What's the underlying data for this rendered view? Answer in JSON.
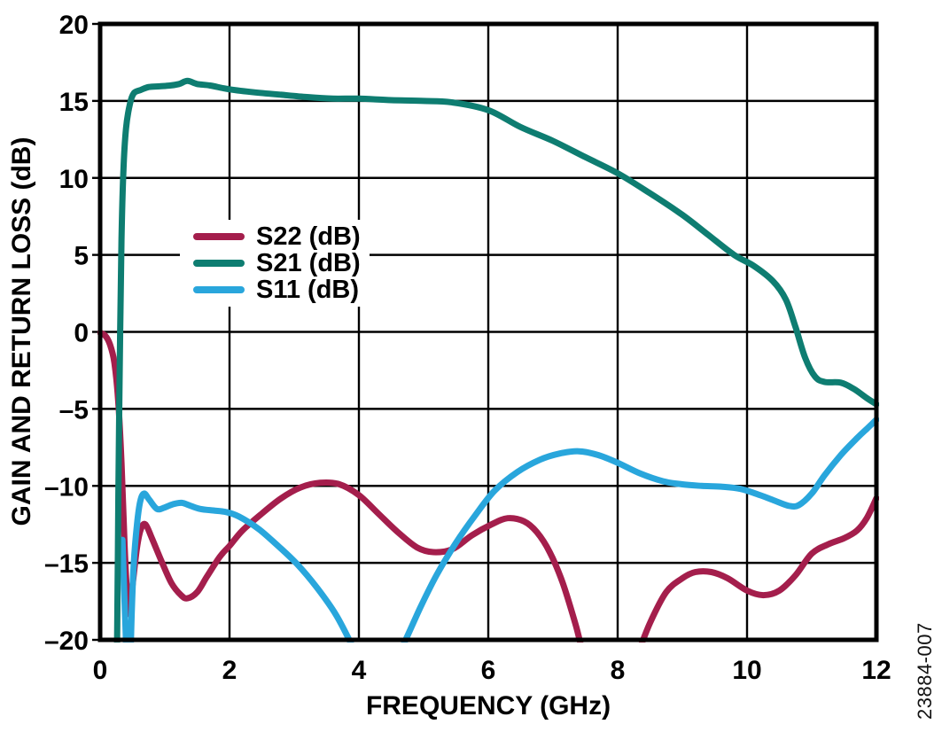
{
  "figure": {
    "watermark": "23884-007",
    "background_color": "#ffffff",
    "grid_color": "#000000",
    "text_color": "#000000"
  },
  "chart_data": {
    "type": "line",
    "title": "",
    "xlabel": "FREQUENCY (GHz)",
    "ylabel": "GAIN AND RETURN LOSS (dB)",
    "xlim": [
      0,
      12
    ],
    "ylim": [
      -20,
      20
    ],
    "x_ticks": [
      0,
      2,
      4,
      6,
      8,
      10,
      12
    ],
    "y_ticks": [
      20,
      15,
      10,
      5,
      0,
      -5,
      -10,
      -15,
      -20
    ],
    "x_tick_labels": [
      "0",
      "2",
      "4",
      "6",
      "8",
      "10",
      "12"
    ],
    "y_tick_labels": [
      "20",
      "15",
      "10",
      "5",
      "0",
      "–5",
      "–10",
      "–15",
      "–20"
    ],
    "grid": true,
    "legend_position": "inside-upper-left",
    "x_unit": "GHz",
    "y_unit": "dB",
    "series": [
      {
        "name": "S22 (dB)",
        "color": "#a41e4c",
        "points": [
          [
            0,
            -0.05
          ],
          [
            0.08,
            -0.25
          ],
          [
            0.15,
            -0.8
          ],
          [
            0.22,
            -2.0
          ],
          [
            0.28,
            -4.5
          ],
          [
            0.33,
            -8.5
          ],
          [
            0.38,
            -14.0
          ],
          [
            0.42,
            -17.3
          ],
          [
            0.45,
            -18.3
          ],
          [
            0.5,
            -16.5
          ],
          [
            0.57,
            -14.0
          ],
          [
            0.63,
            -12.8
          ],
          [
            0.7,
            -12.5
          ],
          [
            0.8,
            -13.4
          ],
          [
            0.95,
            -14.9
          ],
          [
            1.1,
            -16.3
          ],
          [
            1.25,
            -17.1
          ],
          [
            1.35,
            -17.3
          ],
          [
            1.5,
            -16.9
          ],
          [
            1.65,
            -15.9
          ],
          [
            1.85,
            -14.6
          ],
          [
            2.0,
            -13.9
          ],
          [
            2.2,
            -12.9
          ],
          [
            2.5,
            -11.8
          ],
          [
            2.8,
            -10.8
          ],
          [
            3.1,
            -10.1
          ],
          [
            3.4,
            -9.8
          ],
          [
            3.7,
            -9.9
          ],
          [
            4.0,
            -10.6
          ],
          [
            4.3,
            -11.8
          ],
          [
            4.6,
            -13.0
          ],
          [
            4.9,
            -14.0
          ],
          [
            5.15,
            -14.3
          ],
          [
            5.45,
            -14.1
          ],
          [
            5.75,
            -13.2
          ],
          [
            6.05,
            -12.5
          ],
          [
            6.3,
            -12.1
          ],
          [
            6.55,
            -12.3
          ],
          [
            6.75,
            -13.0
          ],
          [
            6.95,
            -14.3
          ],
          [
            7.15,
            -16.3
          ],
          [
            7.35,
            -19.0
          ],
          [
            7.55,
            -22.0
          ],
          [
            7.9,
            -24.5
          ],
          [
            8.25,
            -21.5
          ],
          [
            8.5,
            -18.9
          ],
          [
            8.75,
            -16.9
          ],
          [
            9.0,
            -16.0
          ],
          [
            9.2,
            -15.6
          ],
          [
            9.45,
            -15.6
          ],
          [
            9.7,
            -16.0
          ],
          [
            10.0,
            -16.8
          ],
          [
            10.25,
            -17.1
          ],
          [
            10.5,
            -16.8
          ],
          [
            10.75,
            -15.8
          ],
          [
            11.0,
            -14.4
          ],
          [
            11.25,
            -13.8
          ],
          [
            11.5,
            -13.4
          ],
          [
            11.7,
            -12.9
          ],
          [
            11.85,
            -12.1
          ],
          [
            12.0,
            -10.8
          ]
        ]
      },
      {
        "name": "S21 (dB)",
        "color": "#0e7d71",
        "points": [
          [
            0.26,
            -21.0
          ],
          [
            0.275,
            -14.0
          ],
          [
            0.29,
            -7.0
          ],
          [
            0.31,
            0.0
          ],
          [
            0.33,
            6.0
          ],
          [
            0.36,
            10.5
          ],
          [
            0.4,
            13.2
          ],
          [
            0.46,
            14.8
          ],
          [
            0.52,
            15.5
          ],
          [
            0.62,
            15.7
          ],
          [
            0.75,
            15.9
          ],
          [
            0.92,
            15.95
          ],
          [
            1.08,
            16.0
          ],
          [
            1.22,
            16.1
          ],
          [
            1.35,
            16.3
          ],
          [
            1.5,
            16.1
          ],
          [
            1.7,
            16.0
          ],
          [
            2.0,
            15.75
          ],
          [
            2.4,
            15.55
          ],
          [
            2.8,
            15.4
          ],
          [
            3.2,
            15.25
          ],
          [
            3.6,
            15.15
          ],
          [
            4.0,
            15.15
          ],
          [
            4.5,
            15.05
          ],
          [
            5.0,
            15.0
          ],
          [
            5.45,
            14.9
          ],
          [
            6.0,
            14.4
          ],
          [
            6.5,
            13.3
          ],
          [
            7.0,
            12.4
          ],
          [
            7.5,
            11.35
          ],
          [
            8.0,
            10.3
          ],
          [
            8.5,
            9.0
          ],
          [
            9.0,
            7.6
          ],
          [
            9.4,
            6.3
          ],
          [
            9.8,
            5.0
          ],
          [
            10.1,
            4.3
          ],
          [
            10.4,
            3.3
          ],
          [
            10.6,
            2.1
          ],
          [
            10.75,
            0.3
          ],
          [
            10.9,
            -1.7
          ],
          [
            11.05,
            -2.9
          ],
          [
            11.2,
            -3.25
          ],
          [
            11.45,
            -3.3
          ],
          [
            11.65,
            -3.7
          ],
          [
            11.85,
            -4.3
          ],
          [
            12.0,
            -4.7
          ]
        ]
      },
      {
        "name": "S11 (dB)",
        "color": "#29a6dc",
        "points": [
          [
            0.345,
            -13.5
          ],
          [
            0.365,
            -16.0
          ],
          [
            0.39,
            -19.0
          ],
          [
            0.42,
            -22.0
          ],
          [
            0.46,
            -22.0
          ],
          [
            0.49,
            -18.0
          ],
          [
            0.52,
            -15.0
          ],
          [
            0.57,
            -12.5
          ],
          [
            0.62,
            -11.0
          ],
          [
            0.68,
            -10.5
          ],
          [
            0.76,
            -10.9
          ],
          [
            0.88,
            -11.5
          ],
          [
            1.0,
            -11.4
          ],
          [
            1.12,
            -11.2
          ],
          [
            1.26,
            -11.1
          ],
          [
            1.4,
            -11.3
          ],
          [
            1.55,
            -11.5
          ],
          [
            1.75,
            -11.6
          ],
          [
            1.95,
            -11.7
          ],
          [
            2.15,
            -12.0
          ],
          [
            2.45,
            -12.8
          ],
          [
            2.75,
            -13.9
          ],
          [
            3.05,
            -15.1
          ],
          [
            3.35,
            -16.6
          ],
          [
            3.65,
            -18.4
          ],
          [
            3.95,
            -20.8
          ],
          [
            4.2,
            -22.5
          ],
          [
            4.45,
            -22.3
          ],
          [
            4.7,
            -20.2
          ],
          [
            4.95,
            -17.9
          ],
          [
            5.2,
            -15.8
          ],
          [
            5.5,
            -13.7
          ],
          [
            5.8,
            -11.9
          ],
          [
            6.1,
            -10.3
          ],
          [
            6.45,
            -9.1
          ],
          [
            6.8,
            -8.3
          ],
          [
            7.1,
            -7.9
          ],
          [
            7.4,
            -7.75
          ],
          [
            7.7,
            -8.0
          ],
          [
            8.0,
            -8.5
          ],
          [
            8.35,
            -9.2
          ],
          [
            8.7,
            -9.7
          ],
          [
            9.0,
            -9.9
          ],
          [
            9.3,
            -10.0
          ],
          [
            9.6,
            -10.05
          ],
          [
            9.9,
            -10.2
          ],
          [
            10.2,
            -10.6
          ],
          [
            10.45,
            -11.0
          ],
          [
            10.65,
            -11.3
          ],
          [
            10.8,
            -11.25
          ],
          [
            11.0,
            -10.5
          ],
          [
            11.2,
            -9.3
          ],
          [
            11.45,
            -8.0
          ],
          [
            11.7,
            -6.9
          ],
          [
            11.85,
            -6.3
          ],
          [
            12.0,
            -5.7
          ]
        ]
      }
    ]
  },
  "legend": {
    "items": [
      {
        "label": "S22 (dB)",
        "color": "#a41e4c"
      },
      {
        "label": "S21 (dB)",
        "color": "#0e7d71"
      },
      {
        "label": "S11 (dB)",
        "color": "#29a6dc"
      }
    ]
  }
}
